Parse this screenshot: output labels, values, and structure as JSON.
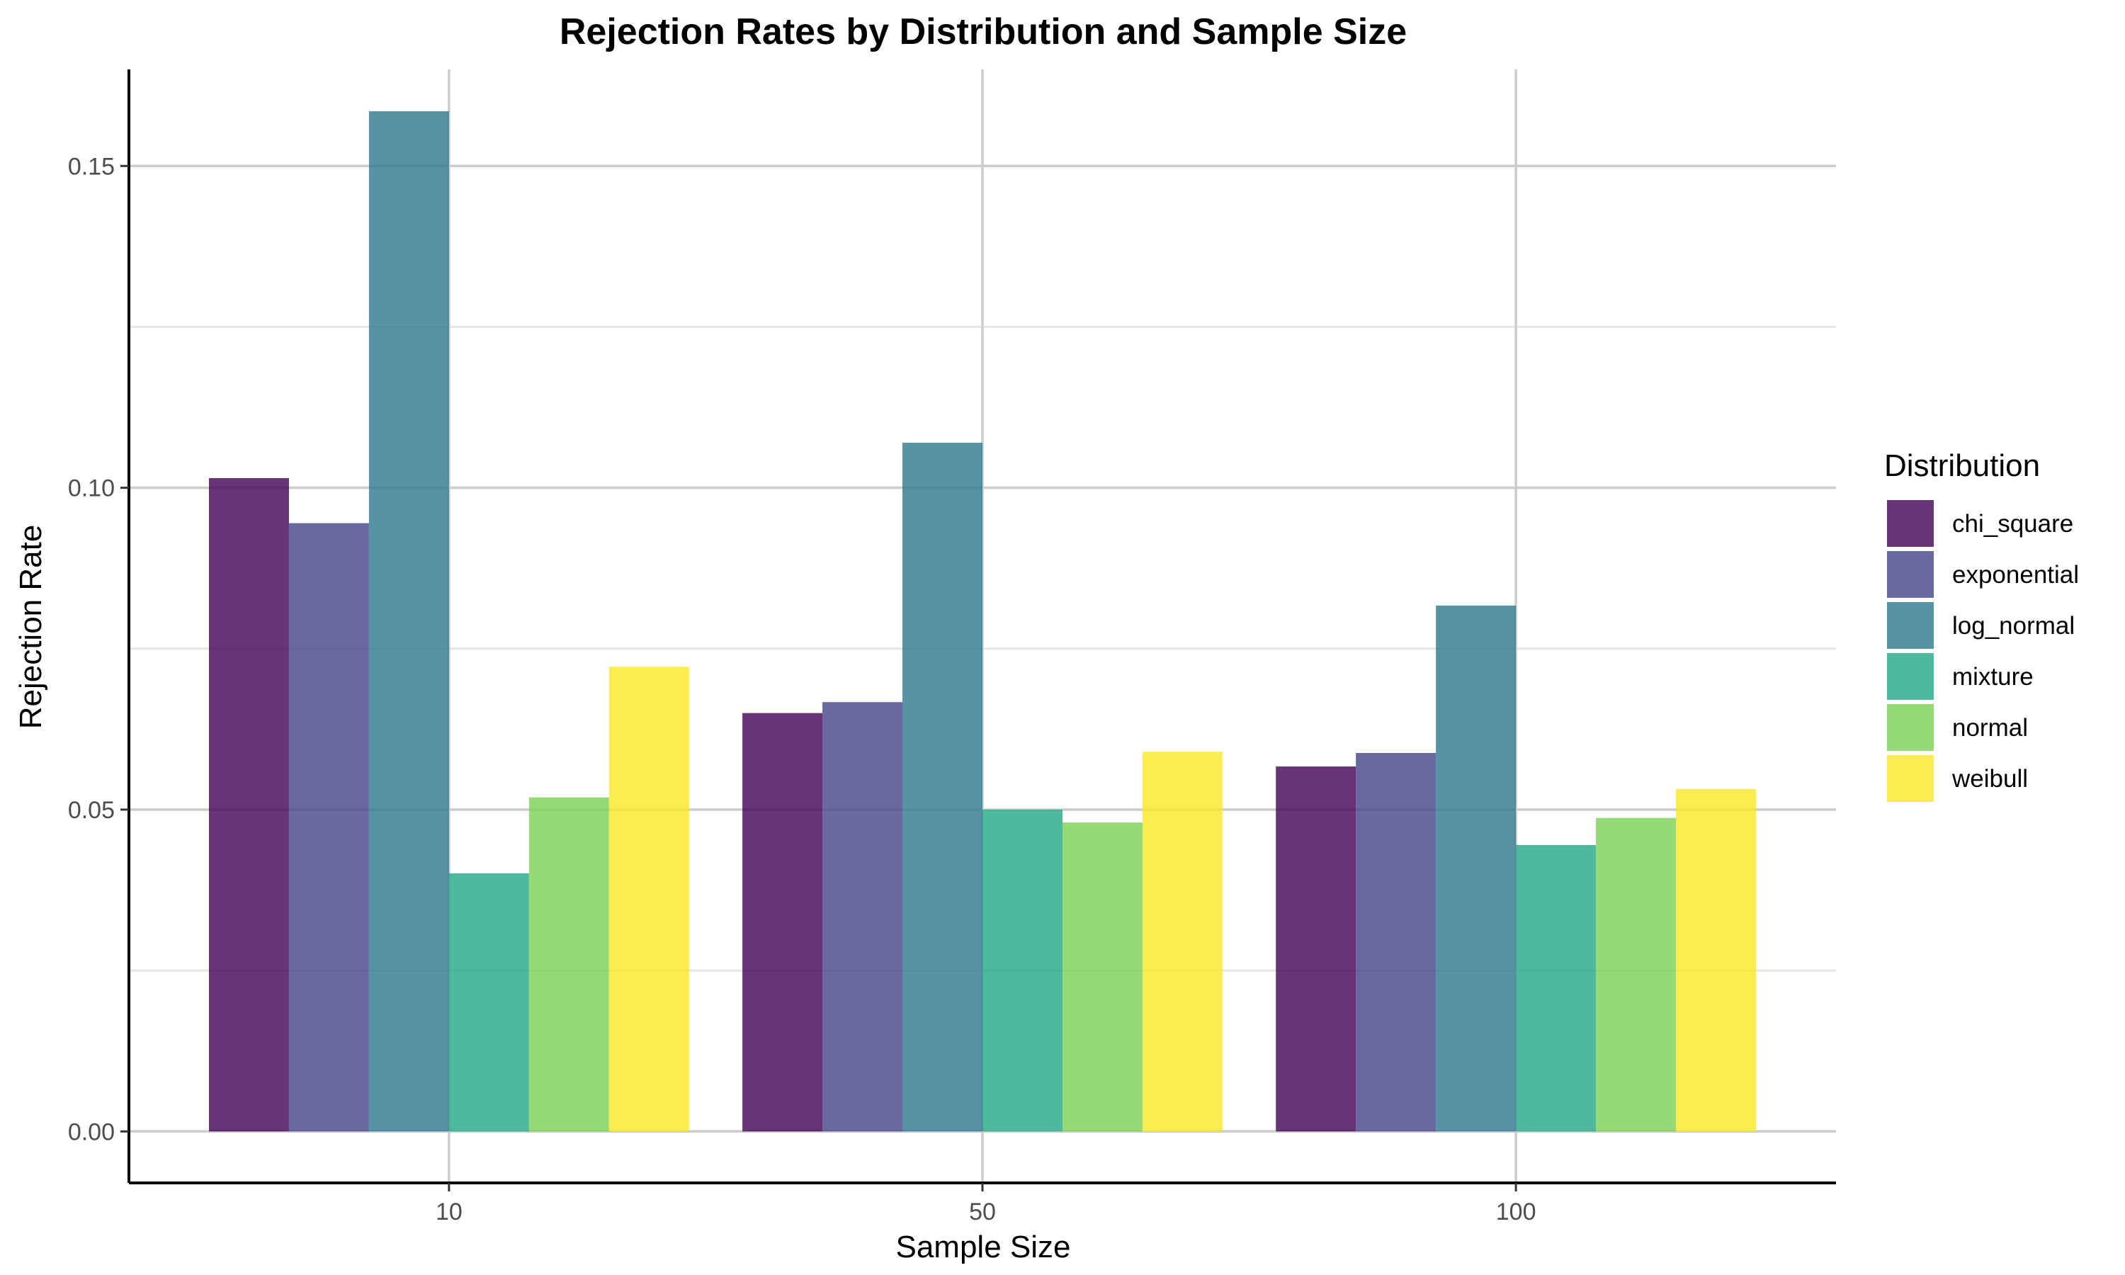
{
  "chart_data": {
    "type": "bar",
    "title": "Rejection Rates by Distribution and Sample Size",
    "xlabel": "Sample Size",
    "ylabel": "Rejection Rate",
    "categories": [
      "10",
      "50",
      "100"
    ],
    "yticks": [
      "0.00",
      "0.05",
      "0.10",
      "0.15"
    ],
    "ylim": [
      -0.008,
      0.165
    ],
    "grid": true,
    "legend_title": "Distribution",
    "legend_position": "right",
    "series": [
      {
        "name": "chi_square",
        "color": "#440154",
        "values": [
          0.1015,
          0.065,
          0.0567
        ]
      },
      {
        "name": "exponential",
        "color": "#414487",
        "values": [
          0.0945,
          0.0667,
          0.0588
        ]
      },
      {
        "name": "log_normal",
        "color": "#2A788E",
        "values": [
          0.1585,
          0.107,
          0.0817
        ]
      },
      {
        "name": "mixture",
        "color": "#22A884",
        "values": [
          0.0401,
          0.05,
          0.0445
        ]
      },
      {
        "name": "normal",
        "color": "#7AD151",
        "values": [
          0.0519,
          0.048,
          0.0487
        ]
      },
      {
        "name": "weibull",
        "color": "#FDE725",
        "values": [
          0.0722,
          0.059,
          0.0532
        ]
      }
    ]
  }
}
